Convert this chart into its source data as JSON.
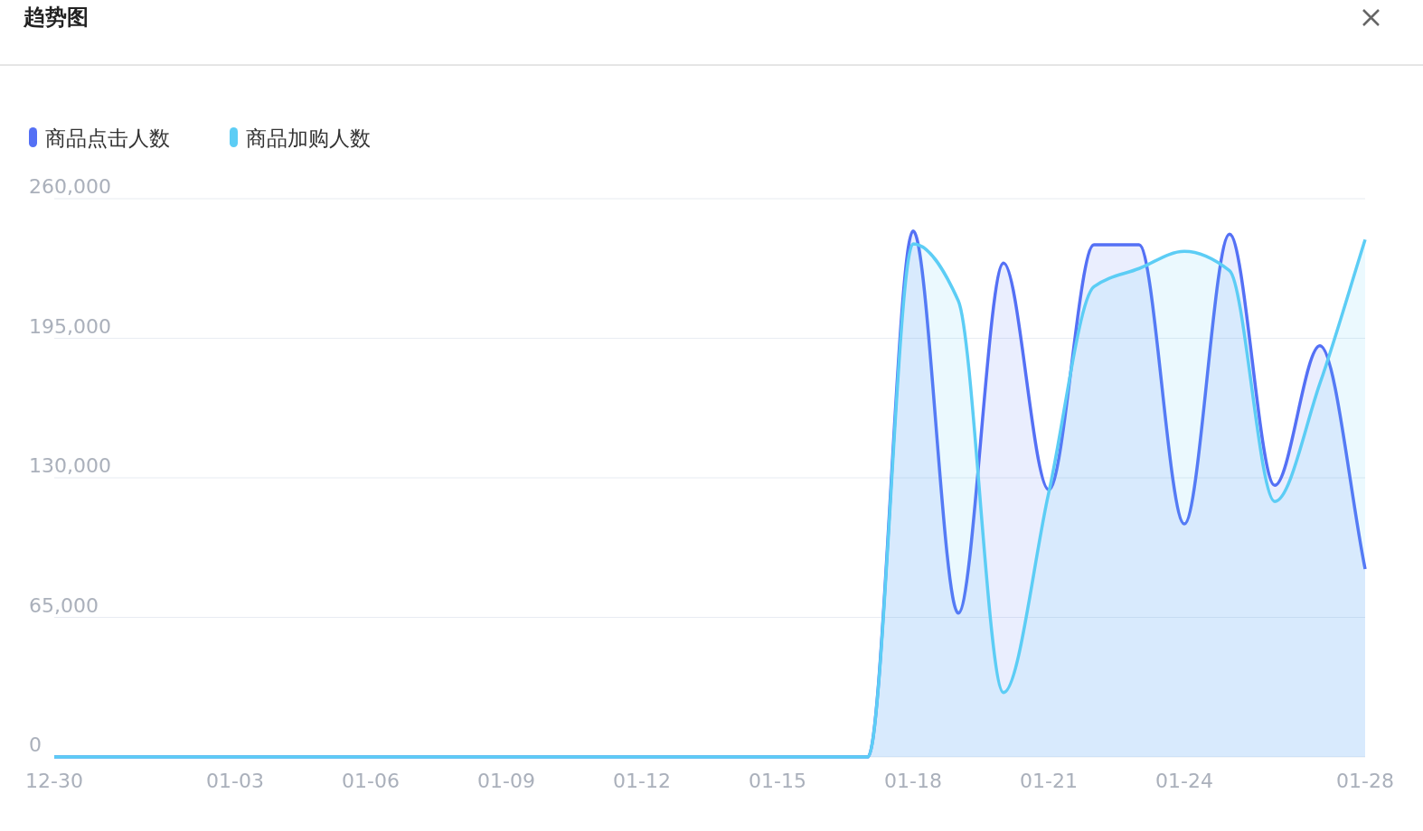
{
  "chart_data": {
    "type": "area",
    "title": "趋势图",
    "categories": [
      "12-30",
      null,
      null,
      null,
      "01-03",
      null,
      null,
      "01-06",
      null,
      null,
      "01-09",
      null,
      null,
      "01-12",
      null,
      null,
      "01-15",
      null,
      null,
      "01-18",
      null,
      null,
      "01-21",
      null,
      null,
      "01-24",
      null,
      null,
      null,
      "01-28"
    ],
    "series": [
      {
        "name": "商品点击人数",
        "color": "#5470f5",
        "values": [
          0,
          0,
          0,
          0,
          0,
          0,
          0,
          0,
          0,
          0,
          0,
          0,
          0,
          0,
          0,
          0,
          0,
          0,
          0,
          245000,
          67000,
          230000,
          124500,
          238500,
          238500,
          108500,
          243500,
          126500,
          191500,
          87500
        ]
      },
      {
        "name": "商品加购人数",
        "color": "#5ccdf5",
        "values": [
          0,
          0,
          0,
          0,
          0,
          0,
          0,
          0,
          0,
          0,
          0,
          0,
          0,
          0,
          0,
          0,
          0,
          0,
          0,
          239000,
          212500,
          30000,
          123000,
          219000,
          227500,
          235500,
          226500,
          119000,
          174000,
          241000
        ]
      }
    ],
    "ylim": [
      0,
      260000
    ],
    "yticks": [
      {
        "value": 0,
        "label": "0"
      },
      {
        "value": 65000,
        "label": "65,000"
      },
      {
        "value": 130000,
        "label": "130,000"
      },
      {
        "value": 195000,
        "label": "195,000"
      },
      {
        "value": 260000,
        "label": "260,000"
      }
    ],
    "grid": "y",
    "legend": "top left",
    "line_style": "solid"
  }
}
